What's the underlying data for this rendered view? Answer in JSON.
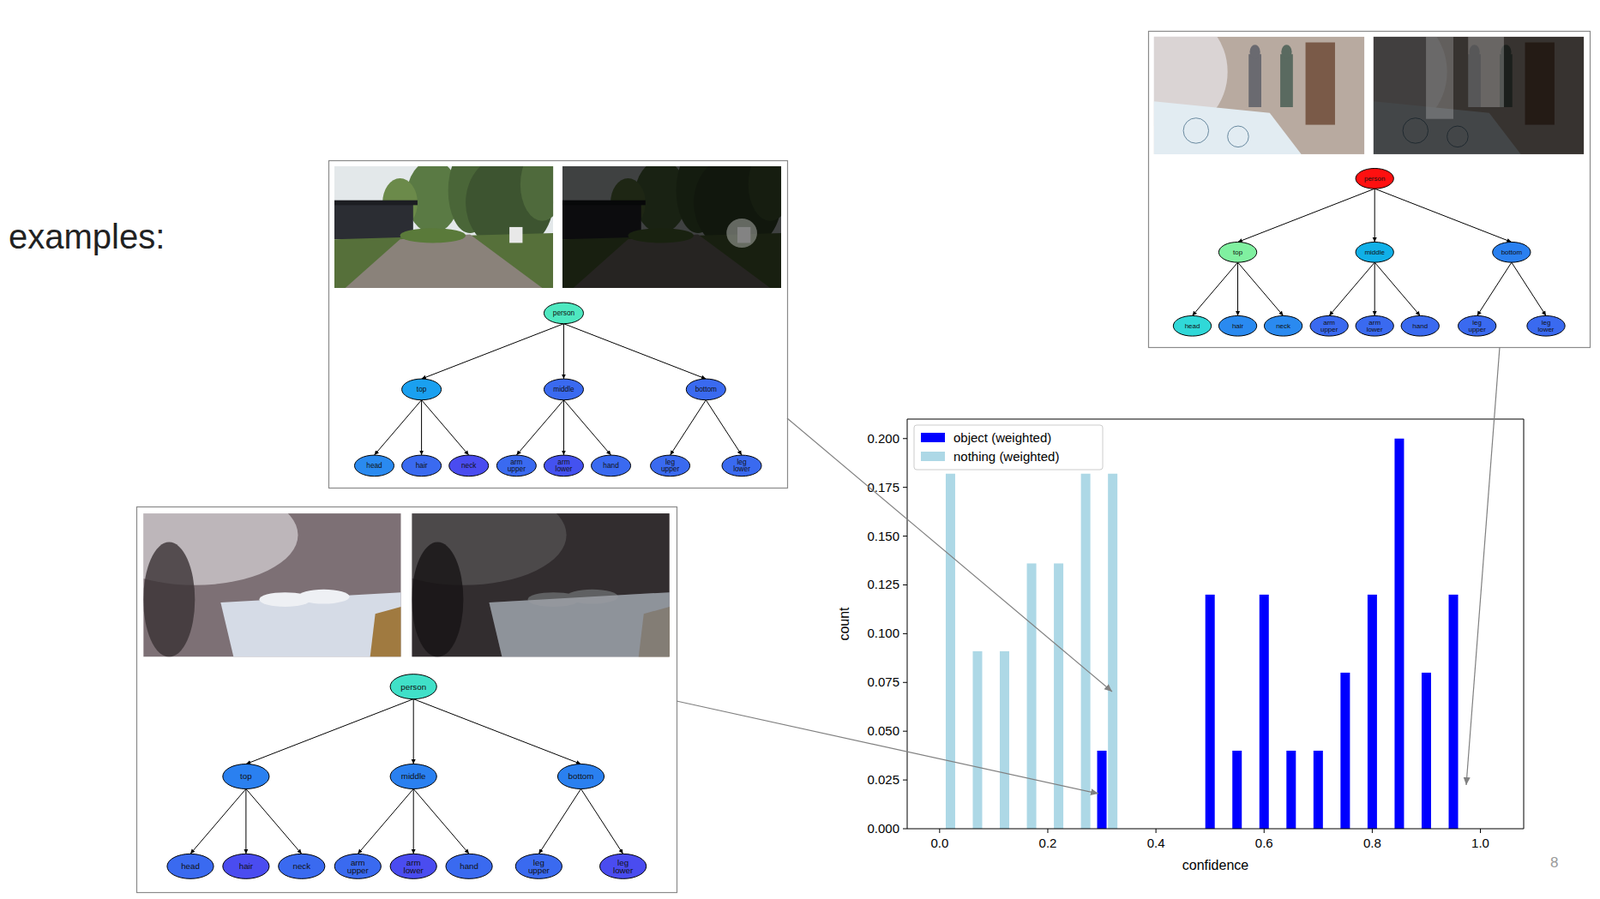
{
  "slide": {
    "heading": "examples:",
    "page_number": "8"
  },
  "examples": [
    {
      "tree": {
        "label": "person",
        "color": "#4ee8c0",
        "children": [
          {
            "label": "top",
            "color": "#1aa0f0",
            "children": [
              {
                "label": "head",
                "color": "#2a8af0"
              },
              {
                "label": "hair",
                "color": "#3a6af0"
              },
              {
                "label": "neck",
                "color": "#4a4cf0"
              }
            ]
          },
          {
            "label": "middle",
            "color": "#3a6af0",
            "children": [
              {
                "label": "arm upper",
                "color": "#3a6af0"
              },
              {
                "label": "arm lower",
                "color": "#4452f0"
              },
              {
                "label": "hand",
                "color": "#3a6af0"
              }
            ]
          },
          {
            "label": "bottom",
            "color": "#3a6af0",
            "children": [
              {
                "label": "leg upper",
                "color": "#3a6af0"
              },
              {
                "label": "leg lower",
                "color": "#3a6af0"
              }
            ]
          }
        ]
      }
    },
    {
      "tree": {
        "label": "person",
        "color": "#40e0c8",
        "children": [
          {
            "label": "top",
            "color": "#2a80f0",
            "children": [
              {
                "label": "head",
                "color": "#3a6af0"
              },
              {
                "label": "hair",
                "color": "#4a4cf0"
              },
              {
                "label": "neck",
                "color": "#3a6af0"
              }
            ]
          },
          {
            "label": "middle",
            "color": "#2a80f0",
            "children": [
              {
                "label": "arm upper",
                "color": "#3a6af0"
              },
              {
                "label": "arm lower",
                "color": "#4a4cf0"
              },
              {
                "label": "hand",
                "color": "#3a6af0"
              }
            ]
          },
          {
            "label": "bottom",
            "color": "#2a80f0",
            "children": [
              {
                "label": "leg upper",
                "color": "#3a6af0"
              },
              {
                "label": "leg lower",
                "color": "#4a4cf0"
              }
            ]
          }
        ]
      }
    },
    {
      "tree": {
        "label": "person",
        "color": "#ff1010",
        "children": [
          {
            "label": "top",
            "color": "#80f0a0",
            "children": [
              {
                "label": "head",
                "color": "#30d8d8"
              },
              {
                "label": "hair",
                "color": "#2a8af0"
              },
              {
                "label": "neck",
                "color": "#2a8af0"
              }
            ]
          },
          {
            "label": "middle",
            "color": "#10b0e8",
            "children": [
              {
                "label": "arm upper",
                "color": "#3a6af0"
              },
              {
                "label": "arm lower",
                "color": "#3a6af0"
              },
              {
                "label": "hand",
                "color": "#3a6af0"
              }
            ]
          },
          {
            "label": "bottom",
            "color": "#2a80f0",
            "children": [
              {
                "label": "leg upper",
                "color": "#3a6af0"
              },
              {
                "label": "leg lower",
                "color": "#3a6af0"
              }
            ]
          }
        ]
      }
    }
  ],
  "chart_data": {
    "type": "bar",
    "x": [
      0.02,
      0.07,
      0.12,
      0.17,
      0.22,
      0.27,
      0.3,
      0.32,
      0.5,
      0.55,
      0.6,
      0.65,
      0.7,
      0.75,
      0.8,
      0.85,
      0.9,
      0.95
    ],
    "series": [
      {
        "name": "object (weighted)",
        "color": "#0000ff",
        "values": [
          null,
          null,
          null,
          null,
          null,
          null,
          0.04,
          null,
          0.12,
          0.04,
          0.12,
          0.04,
          0.04,
          0.08,
          0.12,
          0.2,
          0.08,
          0.12
        ]
      },
      {
        "name": "nothing (weighted)",
        "color": "#add8e6",
        "values": [
          0.182,
          0.091,
          0.091,
          0.136,
          0.136,
          0.182,
          null,
          0.182,
          null,
          null,
          null,
          null,
          null,
          null,
          null,
          null,
          null,
          null
        ]
      }
    ],
    "xlabel": "confidence",
    "ylabel": "count",
    "xlim": [
      -0.06,
      1.08
    ],
    "ylim": [
      0,
      0.21
    ],
    "xticks": [
      {
        "value": 0,
        "label": "0.0"
      },
      {
        "value": 0.2,
        "label": "0.2"
      },
      {
        "value": 0.4,
        "label": "0.4"
      },
      {
        "value": 0.6,
        "label": "0.6"
      },
      {
        "value": 0.8,
        "label": "0.8"
      },
      {
        "value": 1,
        "label": "1.0"
      }
    ],
    "yticks": [
      {
        "value": 0,
        "label": "0.000"
      },
      {
        "value": 0.025,
        "label": "0.025"
      },
      {
        "value": 0.05,
        "label": "0.050"
      },
      {
        "value": 0.075,
        "label": "0.075"
      },
      {
        "value": 0.1,
        "label": "0.100"
      },
      {
        "value": 0.125,
        "label": "0.125"
      },
      {
        "value": 0.15,
        "label": "0.150"
      },
      {
        "value": 0.175,
        "label": "0.175"
      },
      {
        "value": 0.2,
        "label": "0.200"
      }
    ],
    "legend": "upper left",
    "grid": false
  }
}
